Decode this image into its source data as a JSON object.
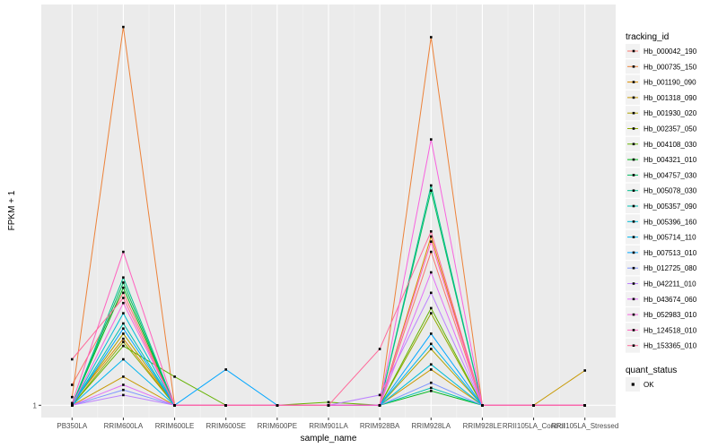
{
  "chart_data": {
    "type": "line",
    "xlabel": "sample_name",
    "ylabel": "FPKM + 1",
    "categories": [
      "PB350LA",
      "RRIM600LA",
      "RRIM600LE",
      "RRIM600SE",
      "RRIM600PE",
      "RRIM901LA",
      "RRIM928BA",
      "RRIM928LA",
      "RRIM928LE",
      "RRII105LA_Control",
      "RRII105LA_Stressed"
    ],
    "y_ticks": [
      {
        "value": 1,
        "label": "1"
      }
    ],
    "ylim": [
      -0.2,
      40.2
    ],
    "grid": true,
    "legend_position": "right",
    "legend_title": "tracking_id",
    "series": [
      {
        "name": "Hb_000042_190",
        "color": "#F8766D",
        "values": [
          3.0,
          12.0,
          1.0,
          1.0,
          1.0,
          1.0,
          1.0,
          16.0,
          1.0,
          1.0,
          1.0
        ]
      },
      {
        "name": "Hb_000735_150",
        "color": "#EC8239",
        "values": [
          1.8,
          38.0,
          1.0,
          1.0,
          1.0,
          1.0,
          1.0,
          37.0,
          1.0,
          1.0,
          1.0
        ]
      },
      {
        "name": "Hb_001190_090",
        "color": "#DB8E00",
        "values": [
          1.2,
          7.5,
          1.0,
          1.0,
          1.0,
          1.0,
          1.0,
          17.5,
          1.0,
          1.0,
          1.0
        ]
      },
      {
        "name": "Hb_001318_090",
        "color": "#C79800",
        "values": [
          1.0,
          3.8,
          1.0,
          1.0,
          1.0,
          1.0,
          1.0,
          4.5,
          1.0,
          1.0,
          4.4
        ]
      },
      {
        "name": "Hb_001930_020",
        "color": "#AEA200",
        "values": [
          1.1,
          8.0,
          1.0,
          1.0,
          1.0,
          1.0,
          1.0,
          6.5,
          1.0,
          1.0,
          1.0
        ]
      },
      {
        "name": "Hb_002357_050",
        "color": "#8FAA00",
        "values": [
          1.0,
          7.2,
          1.0,
          1.0,
          1.0,
          1.0,
          1.0,
          10.0,
          1.0,
          1.0,
          1.0
        ]
      },
      {
        "name": "Hb_004108_030",
        "color": "#64B200",
        "values": [
          1.0,
          6.8,
          3.8,
          1.0,
          1.0,
          1.3,
          1.0,
          10.5,
          1.0,
          1.0,
          1.0
        ]
      },
      {
        "name": "Hb_004321_010",
        "color": "#00B81B",
        "values": [
          1.0,
          12.5,
          1.0,
          1.0,
          1.0,
          1.0,
          1.0,
          2.4,
          1.0,
          1.0,
          1.0
        ]
      },
      {
        "name": "Hb_004757_030",
        "color": "#00BD5C",
        "values": [
          1.0,
          13.0,
          1.0,
          1.0,
          1.0,
          1.0,
          1.0,
          22.0,
          1.0,
          1.0,
          1.0
        ]
      },
      {
        "name": "Hb_005078_030",
        "color": "#00C08E",
        "values": [
          1.0,
          13.5,
          1.0,
          1.0,
          1.0,
          1.0,
          1.0,
          22.5,
          1.0,
          1.0,
          1.0
        ]
      },
      {
        "name": "Hb_005357_090",
        "color": "#00C1B2",
        "values": [
          1.0,
          9.0,
          1.0,
          1.0,
          1.0,
          1.0,
          1.0,
          2.7,
          1.0,
          1.0,
          1.0
        ]
      },
      {
        "name": "Hb_005396_160",
        "color": "#00BCD6",
        "values": [
          1.0,
          10.0,
          1.0,
          1.0,
          1.0,
          1.0,
          1.0,
          5.0,
          1.0,
          1.0,
          1.0
        ]
      },
      {
        "name": "Hb_005714_110",
        "color": "#00B5EE",
        "values": [
          1.0,
          5.5,
          1.0,
          1.0,
          1.0,
          1.0,
          1.0,
          7.0,
          1.0,
          1.0,
          1.0
        ]
      },
      {
        "name": "Hb_007513_010",
        "color": "#00A6FF",
        "values": [
          1.0,
          8.5,
          1.0,
          4.5,
          1.0,
          1.0,
          1.0,
          8.0,
          1.0,
          1.0,
          1.0
        ]
      },
      {
        "name": "Hb_012725_080",
        "color": "#7F96FF",
        "values": [
          1.0,
          2.5,
          1.0,
          1.0,
          1.0,
          1.0,
          1.0,
          3.2,
          1.0,
          1.0,
          1.0
        ]
      },
      {
        "name": "Hb_042211_010",
        "color": "#BC81FF",
        "values": [
          1.0,
          2.0,
          1.0,
          1.0,
          1.0,
          1.0,
          2.0,
          12.0,
          1.0,
          1.0,
          1.0
        ]
      },
      {
        "name": "Hb_043674_060",
        "color": "#E26EF7",
        "values": [
          1.0,
          3.0,
          1.0,
          1.0,
          1.0,
          1.0,
          1.0,
          14.0,
          1.0,
          1.0,
          1.0
        ]
      },
      {
        "name": "Hb_052983_010",
        "color": "#F863DF",
        "values": [
          1.0,
          11.0,
          1.0,
          1.0,
          1.0,
          1.0,
          1.0,
          27.0,
          1.0,
          1.0,
          1.0
        ]
      },
      {
        "name": "Hb_124518_010",
        "color": "#FF62BF",
        "values": [
          1.2,
          16.0,
          1.0,
          1.0,
          1.0,
          1.0,
          1.0,
          17.0,
          1.0,
          1.0,
          1.0
        ]
      },
      {
        "name": "Hb_153365_010",
        "color": "#FF6A9A",
        "values": [
          5.5,
          11.5,
          1.0,
          1.0,
          1.0,
          1.0,
          6.5,
          18.0,
          1.0,
          1.0,
          1.0
        ]
      }
    ],
    "shape_legend": {
      "title": "quant_status",
      "items": [
        {
          "label": "OK"
        }
      ]
    }
  }
}
